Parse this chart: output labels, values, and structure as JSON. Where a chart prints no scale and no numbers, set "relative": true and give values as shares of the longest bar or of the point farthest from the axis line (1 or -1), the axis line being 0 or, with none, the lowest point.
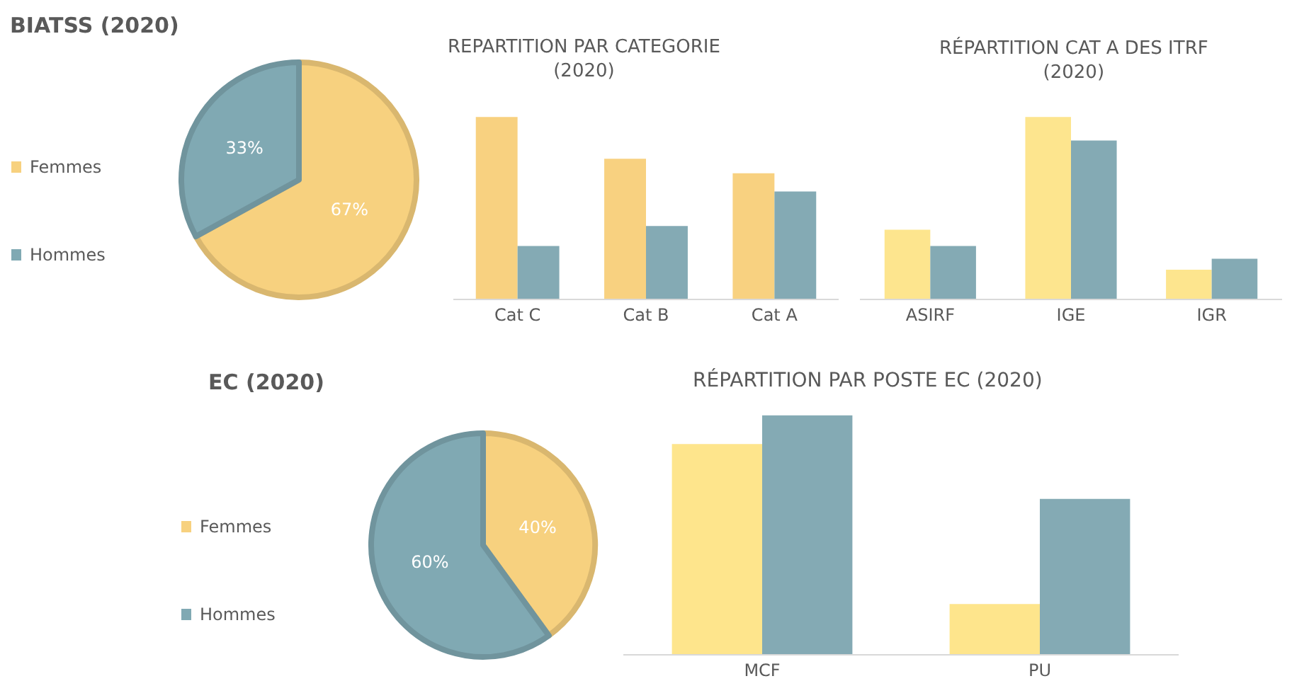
{
  "chart_data": [
    {
      "type": "pie",
      "title": "BIATSS (2020)",
      "categories": [
        "Femmes",
        "Hommes"
      ],
      "values": [
        67,
        33
      ],
      "colors": [
        "#f7d17f",
        "#80a9b3"
      ],
      "value_labels": [
        "67%",
        "33%"
      ],
      "legend": "left"
    },
    {
      "type": "bar",
      "title": "REPARTITION PAR CATEGORIE\n(2020)",
      "categories": [
        "Cat C",
        "Cat B",
        "Cat A"
      ],
      "relative": true,
      "series": [
        {
          "color": "#f8d180",
          "values": [
            1,
            0.77,
            0.69
          ]
        },
        {
          "color": "#84aab4",
          "values": [
            0.29,
            0.4,
            0.59
          ]
        }
      ]
    },
    {
      "type": "bar",
      "title": "RÉPARTITION CAT A DES ITRF\n(2020)",
      "categories": [
        "ASIRF",
        "IGE",
        "IGR"
      ],
      "relative": true,
      "series": [
        {
          "color": "#fde58e",
          "values": [
            0.38,
            1,
            0.16
          ]
        },
        {
          "color": "#84aab4",
          "values": [
            0.29,
            0.87,
            0.22
          ]
        }
      ]
    },
    {
      "type": "pie",
      "title": "EC (2020)",
      "categories": [
        "Femmes",
        "Hommes"
      ],
      "values": [
        40,
        60
      ],
      "colors": [
        "#f7d17f",
        "#80a9b3"
      ],
      "value_labels": [
        "40%",
        "60%"
      ],
      "legend": "left"
    },
    {
      "type": "bar",
      "title": "RÉPARTITION PAR POSTE EC (2020)",
      "categories": [
        "MCF",
        "PU"
      ],
      "relative": true,
      "series": [
        {
          "color": "#fee58c",
          "values": [
            0.88,
            0.21
          ]
        },
        {
          "color": "#84aab4",
          "values": [
            1,
            0.65
          ]
        }
      ]
    }
  ]
}
